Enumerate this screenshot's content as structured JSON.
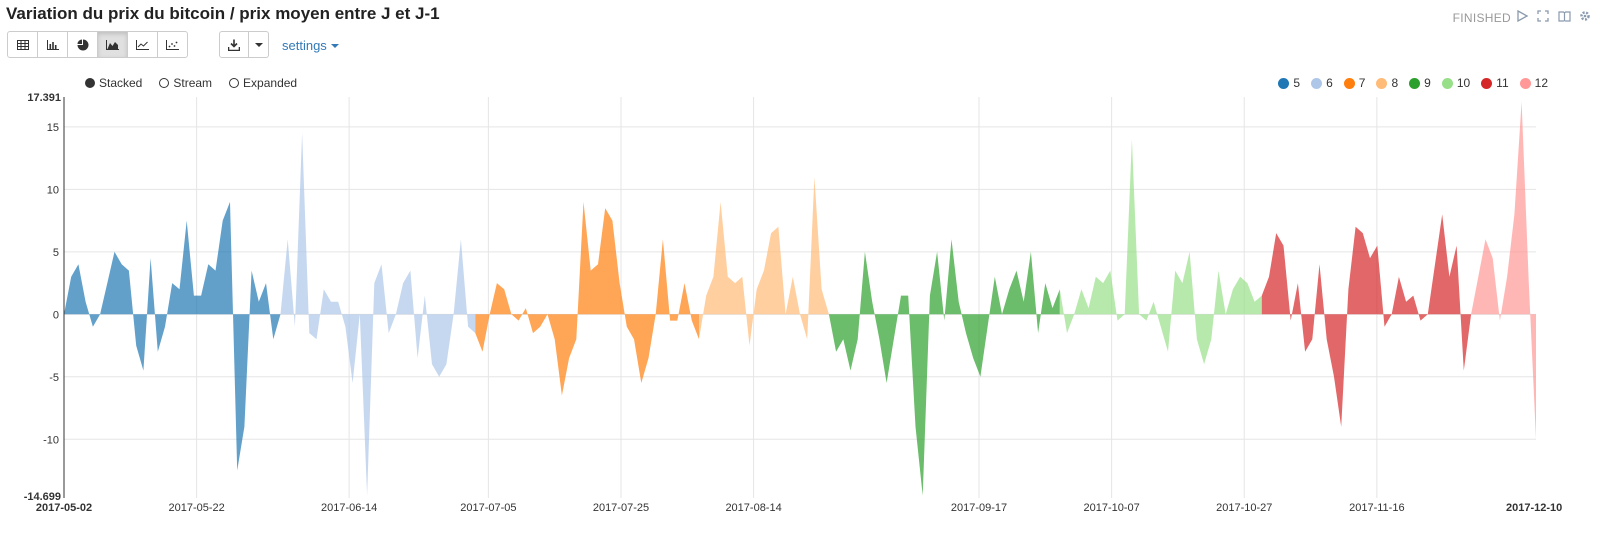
{
  "title": "Variation du prix du bitcoin / prix moyen entre J et J-1",
  "status": "FINISHED",
  "top_icons": [
    "play-icon",
    "expand-icon",
    "book-icon",
    "gear-icon"
  ],
  "toolbar": {
    "buttons": [
      {
        "icon": "table-icon"
      },
      {
        "icon": "bar-chart-icon"
      },
      {
        "icon": "pie-chart-icon"
      },
      {
        "icon": "area-chart-icon",
        "active": true
      },
      {
        "icon": "line-chart-icon"
      },
      {
        "icon": "scatter-chart-icon"
      }
    ],
    "download_icon": "download-icon",
    "settings_label": "settings"
  },
  "modes": {
    "stacked": "Stacked",
    "stream": "Stream",
    "expanded": "Expanded",
    "selected": "stacked"
  },
  "colors": {
    "accent": "#337ab7",
    "series": {
      "5": "#1f77b4",
      "6": "#aec7e8",
      "7": "#ff7f0e",
      "8": "#ffbb78",
      "9": "#2ca02c",
      "10": "#98df8a",
      "11": "#d62728",
      "12": "#ff9896"
    }
  },
  "chart_data": {
    "type": "area",
    "mode": "stacked",
    "title": "",
    "xlabel": "",
    "ylabel": "",
    "x_start": "2017-05-02",
    "x_end": "2017-12-10",
    "ylim": [
      -14.699,
      17.391
    ],
    "y_ticks": [
      -10,
      -5,
      0,
      5,
      10,
      15
    ],
    "x_ticks": [
      "2017-05-22",
      "2017-06-14",
      "2017-07-05",
      "2017-07-25",
      "2017-08-14",
      "2017-09-17",
      "2017-10-07",
      "2017-10-27",
      "2017-11-16"
    ],
    "x_axis_ends": [
      "2017-05-02",
      "2017-12-10"
    ],
    "y_axis_ends": [
      "17.391",
      "-14.699"
    ],
    "legend_position": "top-right",
    "grid": true,
    "series": [
      {
        "name": "5",
        "values": [
          0,
          3,
          4,
          1,
          -1,
          0,
          2.5,
          5,
          4,
          3.5,
          -2.5,
          -4.5,
          4.5,
          -3,
          -1,
          2.5,
          2,
          7.5,
          1.5,
          1.5,
          4,
          3.5,
          7.5,
          9,
          -12.5,
          -9,
          3.5,
          1,
          2.5,
          -2
        ]
      },
      {
        "name": "6",
        "values": [
          0,
          6,
          -1,
          14.5,
          -1.5,
          -2,
          2,
          1,
          1,
          -1,
          -5.5,
          0,
          -14.5,
          2.5,
          4,
          -1.5,
          0,
          2.5,
          3.5,
          -3.5,
          1.5,
          -4,
          -5,
          -4,
          0,
          6,
          -1
        ]
      },
      {
        "name": "7",
        "values": [
          -1.5,
          -3,
          0,
          2.5,
          2,
          0,
          -0.5,
          0.5,
          -1.5,
          -1,
          0,
          -2,
          -6.5,
          -3.5,
          -2,
          9,
          3.5,
          4,
          8.5,
          7.5,
          2.5,
          -1,
          -2,
          -5.5,
          -3.5,
          0,
          6,
          -0.5,
          -0.5,
          2.5,
          -0.5
        ]
      },
      {
        "name": "8",
        "values": [
          -2,
          1.5,
          3,
          9,
          3,
          2.5,
          3,
          -2.5,
          2,
          3.5,
          6.5,
          7,
          0,
          3,
          0,
          -2,
          11,
          2
        ]
      },
      {
        "name": "9",
        "values": [
          0,
          -3,
          -2,
          -4.5,
          -2,
          5,
          1,
          -2,
          -5.5,
          -2,
          1.5,
          1.5,
          -9,
          -14.5,
          1.5,
          5,
          -0.5,
          6,
          1,
          -1.5,
          -3.5,
          -5,
          -1,
          3,
          0,
          2,
          3.5,
          1,
          5,
          -1.5,
          2.5,
          0.5
        ]
      },
      {
        "name": "10",
        "values": [
          2,
          -1.5,
          0,
          2,
          0.5,
          3,
          2.5,
          3.5,
          -0.5,
          0,
          14,
          0,
          -0.5,
          1,
          -1,
          -3,
          3.5,
          2.5,
          5,
          -2,
          -4,
          -2,
          3.5,
          0,
          2,
          3,
          2.5,
          1
        ]
      },
      {
        "name": "11",
        "values": [
          1.5,
          3,
          6.5,
          5.5,
          -0.5,
          2.5,
          -3,
          -2,
          4,
          -2,
          -5,
          -9,
          2,
          7,
          6.5,
          4.5,
          5.5,
          -1,
          0,
          3,
          1,
          1.5,
          -0.5,
          0,
          4,
          8,
          3,
          5.5,
          -4.5
        ]
      },
      {
        "name": "12",
        "values": [
          0,
          3,
          6,
          4.5,
          -0.5,
          3,
          8,
          17,
          2.5,
          -10
        ]
      }
    ]
  }
}
